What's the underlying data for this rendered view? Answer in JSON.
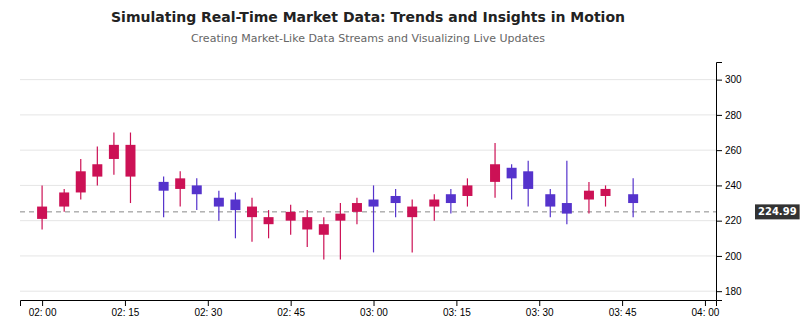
{
  "chart_data": {
    "type": "candlestick",
    "title": "Simulating Real-Time Market Data: Trends and Insights in Motion",
    "subtitle": "Creating Market-Like Data Streams and Visualizing Live Updates",
    "x": [
      0,
      4,
      7,
      10,
      13,
      16,
      22,
      25,
      28,
      32,
      35,
      38,
      41,
      45,
      48,
      51,
      54,
      57,
      60,
      64,
      67,
      71,
      74,
      77,
      82,
      85,
      88,
      92,
      95,
      99,
      102,
      107
    ],
    "open": [
      228,
      228,
      236,
      245,
      255,
      263,
      237,
      238,
      240,
      233,
      232,
      228,
      222,
      225,
      222,
      218,
      224,
      225,
      228,
      230,
      228,
      228,
      230,
      234,
      242,
      244,
      248,
      235,
      230,
      232,
      234,
      235
    ],
    "close": [
      221,
      236,
      248,
      252,
      263,
      245,
      242,
      244,
      235,
      228,
      226,
      222,
      218,
      220,
      215,
      212,
      220,
      230,
      232,
      234,
      222,
      232,
      235,
      240,
      252,
      250,
      238,
      228,
      224,
      237,
      238,
      230
    ],
    "high": [
      240,
      238,
      255,
      262,
      270,
      270,
      245,
      248,
      244,
      237,
      236,
      233,
      226,
      229,
      226,
      222,
      230,
      233,
      240,
      238,
      232,
      235,
      238,
      244,
      264,
      252,
      254,
      238,
      254,
      242,
      240,
      244
    ],
    "low": [
      215,
      225,
      232,
      240,
      246,
      230,
      222,
      228,
      226,
      220,
      210,
      208,
      210,
      212,
      205,
      198,
      198,
      218,
      202,
      222,
      202,
      220,
      224,
      228,
      233,
      232,
      228,
      222,
      218,
      224,
      228,
      222
    ],
    "colors": [
      "#cc1155",
      "#cc1155",
      "#cc1155",
      "#cc1155",
      "#cc1155",
      "#cc1155",
      "#5533cc",
      "#cc1155",
      "#5533cc",
      "#5533cc",
      "#5533cc",
      "#cc1155",
      "#cc1155",
      "#cc1155",
      "#cc1155",
      "#cc1155",
      "#cc1155",
      "#cc1155",
      "#5533cc",
      "#5533cc",
      "#cc1155",
      "#cc1155",
      "#5533cc",
      "#cc1155",
      "#cc1155",
      "#5533cc",
      "#5533cc",
      "#5533cc",
      "#5533cc",
      "#cc1155",
      "#cc1155",
      "#5533cc"
    ],
    "xlim": [
      -4,
      122
    ],
    "xticks": [
      {
        "value": 0,
        "label": "02: 00"
      },
      {
        "value": 15,
        "label": "02: 15"
      },
      {
        "value": 30,
        "label": "02: 30"
      },
      {
        "value": 45,
        "label": "02: 45"
      },
      {
        "value": 60,
        "label": "03: 00"
      },
      {
        "value": 75,
        "label": "03: 15"
      },
      {
        "value": 90,
        "label": "03: 30"
      },
      {
        "value": 105,
        "label": "03: 45"
      },
      {
        "value": 120,
        "label": "04: 00"
      }
    ],
    "ylim": [
      175,
      310
    ],
    "yticks": [
      180,
      200,
      220,
      240,
      260,
      280,
      300
    ],
    "grid": true,
    "annotations": [
      {
        "text": "224.99",
        "y": 224.99
      }
    ]
  }
}
